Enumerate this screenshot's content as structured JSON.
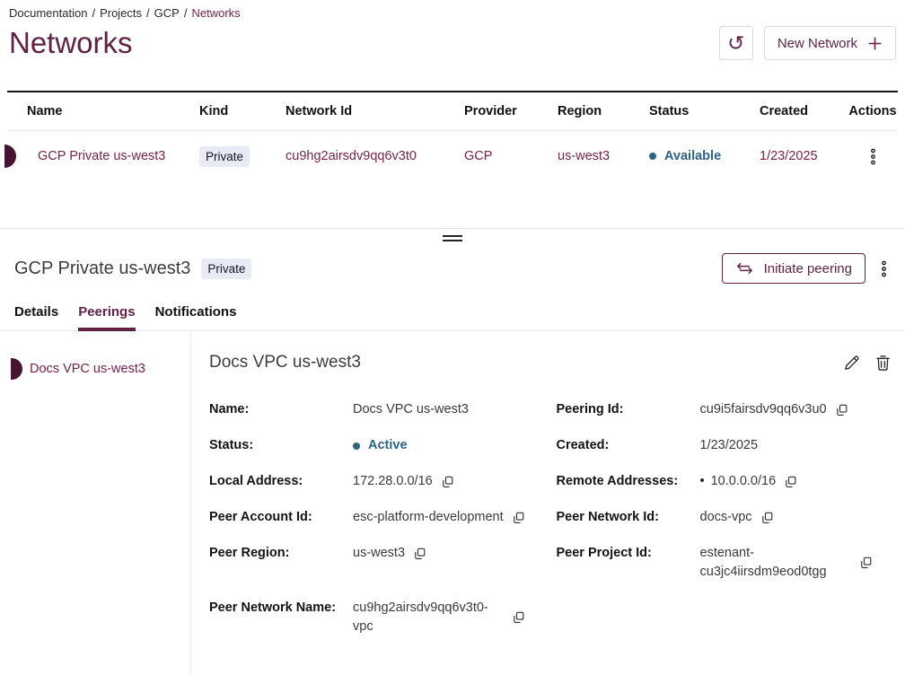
{
  "colors": {
    "accent_maroon": "#5f2245",
    "link_maroon": "#772349",
    "row_indicator": "#471333",
    "status_blue": "#2e6381",
    "badge_bg": "#e8eaf4"
  },
  "breadcrumb": {
    "items": [
      "Documentation",
      "Projects",
      "GCP"
    ],
    "current": "Networks",
    "separator": "/"
  },
  "page": {
    "title": "Networks"
  },
  "toolbar": {
    "refresh_icon": "↺",
    "new_network_label": "New Network",
    "plus_icon": "+"
  },
  "table": {
    "columns": [
      "Name",
      "Kind",
      "Network Id",
      "Provider",
      "Region",
      "Status",
      "Created",
      "Actions"
    ],
    "rows": [
      {
        "name": "GCP Private us-west3",
        "kind": "Private",
        "network_id": "cu9hg2airsdv9qq6v3t0",
        "provider": "GCP",
        "region": "us-west3",
        "status": "Available",
        "created": "1/23/2025"
      }
    ]
  },
  "detail": {
    "title": "GCP Private us-west3",
    "badge": "Private",
    "initiate_peering_label": "Initiate peering",
    "tabs": [
      {
        "label": "Details",
        "active": false
      },
      {
        "label": "Peerings",
        "active": true
      },
      {
        "label": "Notifications",
        "active": false
      }
    ],
    "sidebar": {
      "items": [
        {
          "label": "Docs VPC us-west3"
        }
      ]
    },
    "panel": {
      "title": "Docs VPC us-west3",
      "fields": [
        {
          "label": "Name:",
          "value": "Docs VPC us-west3"
        },
        {
          "label": "Peering Id:",
          "value": "cu9i5fairsdv9qq6v3u0",
          "copy": true
        },
        {
          "label": "Status:",
          "value": "Active",
          "status": true
        },
        {
          "label": "Created:",
          "value": "1/23/2025"
        },
        {
          "label": "Local Address:",
          "value": "172.28.0.0/16",
          "copy": true
        },
        {
          "label": "Remote Addresses:",
          "value": "10.0.0.0/16",
          "bullet": true,
          "copy": true
        },
        {
          "label": "Peer Account Id:",
          "value": "esc-platform-development",
          "copy": true
        },
        {
          "label": "Peer Network Id:",
          "value": "docs-vpc",
          "copy": true
        },
        {
          "label": "Peer Region:",
          "value": "us-west3",
          "copy": true
        },
        {
          "label": "Peer Project Id:",
          "value": "estenant-cu3jc4iirsdm9eod0tgg",
          "copy": true
        },
        {
          "label": "Peer Network Name:",
          "value": "cu9hg2airsdv9qq6v3t0-vpc",
          "copy": true
        }
      ]
    }
  }
}
